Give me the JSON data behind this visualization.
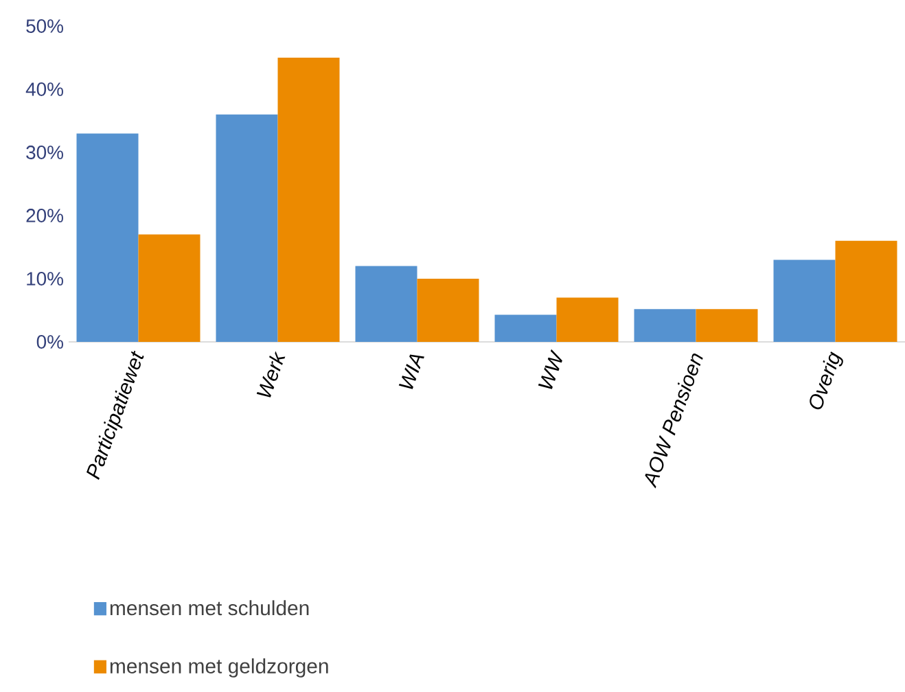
{
  "chart_data": {
    "type": "bar",
    "categories": [
      "Participatiewet",
      "Werk",
      "WIA",
      "WW",
      "AOW Pensioen",
      "Overig"
    ],
    "series": [
      {
        "name": "mensen met schulden",
        "color": "#5592d0",
        "values": [
          33,
          36,
          12,
          4.3,
          5.2,
          13
        ]
      },
      {
        "name": "mensen met geldzorgen",
        "color": "#ec8a00",
        "values": [
          17,
          45,
          10,
          7,
          5.2,
          16
        ]
      }
    ],
    "ylim": [
      0,
      50
    ],
    "yticks": [
      {
        "value": 0,
        "label": "0%"
      },
      {
        "value": 10,
        "label": "10%"
      },
      {
        "value": 20,
        "label": "20%"
      },
      {
        "value": 30,
        "label": "30%"
      },
      {
        "value": 40,
        "label": "40%"
      },
      {
        "value": 50,
        "label": "50%"
      }
    ],
    "grid": false,
    "legend": "bottom left"
  }
}
